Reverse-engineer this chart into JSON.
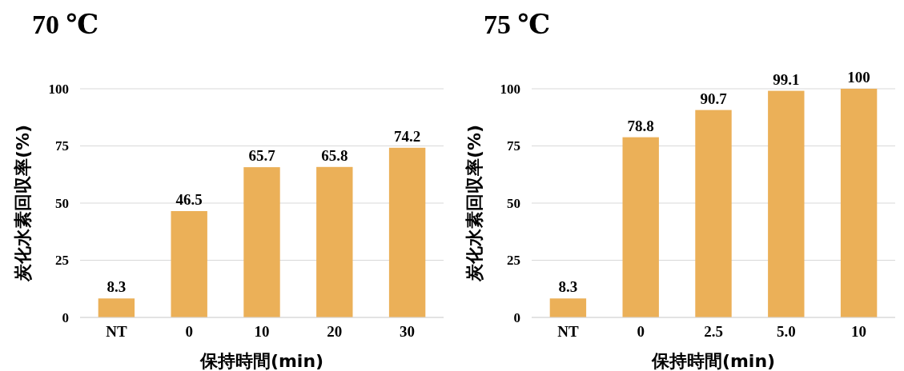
{
  "chart_data": [
    {
      "type": "bar",
      "title": "70 ℃",
      "xlabel": "保持時間(min)",
      "ylabel": "炭化水素回収率(%)",
      "categories": [
        "NT",
        "0",
        "10",
        "20",
        "30"
      ],
      "values": [
        8.3,
        46.5,
        65.7,
        65.8,
        74.2
      ],
      "color": "#ebb058",
      "ylim": [
        0,
        100
      ],
      "yticks": [
        0,
        25,
        50,
        75,
        100
      ],
      "grid": "y",
      "data_labels": true
    },
    {
      "type": "bar",
      "title": "75 ℃",
      "xlabel": "保持時間(min)",
      "ylabel": "炭化水素回収率(%)",
      "categories": [
        "NT",
        "0",
        "2.5",
        "5.0",
        "10"
      ],
      "values": [
        8.3,
        78.8,
        90.7,
        99.1,
        100
      ],
      "color": "#ebb058",
      "ylim": [
        0,
        100
      ],
      "yticks": [
        0,
        25,
        50,
        75,
        100
      ],
      "grid": "y",
      "data_labels": true
    }
  ]
}
